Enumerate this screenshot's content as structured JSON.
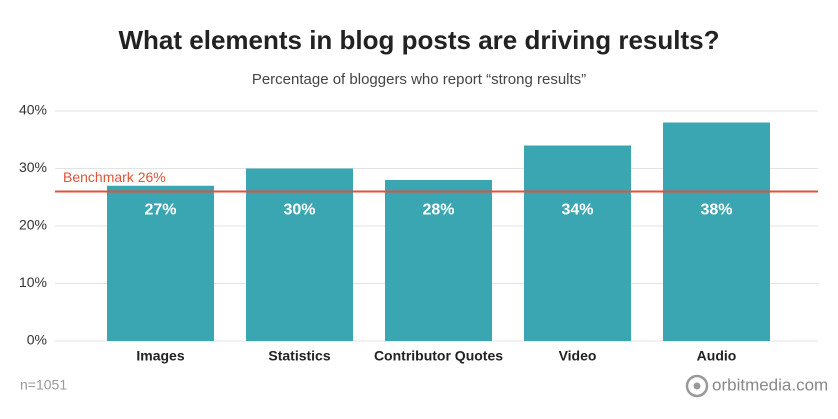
{
  "chart_data": {
    "type": "bar",
    "title": "What elements in blog posts are driving results?",
    "subtitle": "Percentage of bloggers who report “strong results”",
    "categories": [
      "Images",
      "Statistics",
      "Contributor Quotes",
      "Video",
      "Audio"
    ],
    "values": [
      27,
      30,
      28,
      34,
      38
    ],
    "value_labels": [
      "27%",
      "30%",
      "28%",
      "34%",
      "38%"
    ],
    "color": "#3aa6b1",
    "ylim": [
      0,
      40
    ],
    "yticks": [
      {
        "value": 0,
        "label": "0%"
      },
      {
        "value": 10,
        "label": "10%"
      },
      {
        "value": 20,
        "label": "20%"
      },
      {
        "value": 30,
        "label": "30%"
      },
      {
        "value": 40,
        "label": "40%"
      }
    ],
    "grid": true,
    "benchmark": {
      "value": 26,
      "label": "Benchmark 26%",
      "color": "#e0533a"
    },
    "note": "n=1051",
    "source": "orbitmedia.com"
  }
}
